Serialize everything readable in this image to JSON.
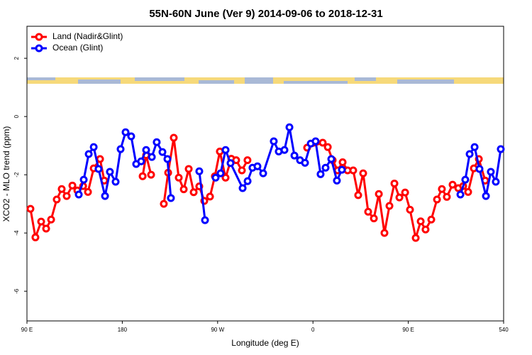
{
  "chart_data": {
    "type": "line",
    "title": "55N-60N June (Ver 9)   2014-09-06 to 2018-12-31",
    "x_label": "Longitude (deg E)",
    "y_label": "XCO2 - MLO trend (ppm)",
    "xlim": [
      90,
      540
    ],
    "xticks": [
      {
        "value": 90,
        "label": "90 E"
      },
      180,
      {
        "value": 270,
        "label": "90 W"
      },
      {
        "value": 360,
        "label": "0"
      },
      {
        "value": 450,
        "label": "90 E"
      },
      540
    ],
    "ylim": [
      -7.02,
      3.1
    ],
    "yticks": [
      2,
      0,
      -2,
      -4,
      -6
    ],
    "legend": "top-left",
    "series": [
      {
        "name": "Land (Nadir&Glint)",
        "color": "#ff0000",
        "x": [
          93.3,
          98,
          103.4,
          108.1,
          112.8,
          118.1,
          122.8,
          127.5,
          132.9,
          137.6,
          143,
          147.6,
          153,
          159,
          163,
          null,
          199.2,
          202.5,
          207.2,
          null,
          219.2,
          223.3,
          228.6,
          233.3,
          238,
          242.7,
          247.4,
          252.7,
          257.4,
          262.8,
          267.4,
          272.1,
          277.5,
          282.9,
          287.5,
          292.9,
          298.2,
          null,
          354.5,
          369.2,
          374,
          378.6,
          383.3,
          388,
          392.7,
          398,
          402.7,
          407.4,
          412.1,
          417.5,
          422.2,
          427.5,
          432.2,
          436.9,
          441.6,
          447,
          451.6,
          457,
          461.7,
          466.3,
          471.7,
          477.1,
          481.7,
          486.4,
          491.8,
          497.2,
          501.8,
          506.5,
          511.9,
          516.6,
          522.6
        ],
        "values": [
          -3.17,
          -4.15,
          -3.61,
          -3.85,
          -3.54,
          -2.85,
          -2.49,
          -2.73,
          -2.37,
          -2.54,
          -2.39,
          -2.59,
          -1.78,
          -1.46,
          -2.2,
          null,
          -2.05,
          -1.33,
          -2.0,
          null,
          -3.0,
          -1.93,
          -0.73,
          -2.1,
          -2.5,
          -1.8,
          -2.6,
          -2.4,
          -2.9,
          -2.75,
          -2.05,
          -1.2,
          -2.1,
          -1.45,
          -1.5,
          -1.85,
          -1.5,
          null,
          -1.07,
          -0.9,
          -1.05,
          -1.5,
          -1.85,
          -1.57,
          -1.85,
          -1.85,
          -2.7,
          -1.95,
          -3.27,
          -3.5,
          -2.66,
          -4.0,
          -3.07,
          -2.3,
          -2.78,
          -2.61,
          -3.2,
          -4.17,
          -3.6,
          -3.88,
          -3.54,
          -2.85,
          -2.49,
          -2.76,
          -2.34,
          -2.46,
          -2.39,
          -2.59,
          -1.78,
          -1.46,
          -2.2
        ]
      },
      {
        "name": "Ocean (Glint)",
        "color": "#0000ff",
        "x": [
          138.9,
          143.6,
          148.3,
          153,
          157.6,
          163.7,
          168.3,
          173.7,
          178.4,
          183.1,
          188.4,
          193.1,
          197.8,
          202.5,
          207.9,
          212.5,
          217.9,
          222.6,
          225.9,
          null,
          252.7,
          258.1,
          null,
          268.1,
          272.8,
          277.5,
          282.2,
          293.6,
          298.3,
          302.9,
          307.6,
          313,
          323,
          327.7,
          333.1,
          337.8,
          342.5,
          347.8,
          352.5,
          357.9,
          362.5,
          367.2,
          371.9,
          377.3,
          382.6,
          387.3,
          null,
          499.2,
          503.8,
          507.9,
          512.6,
          517.2,
          523.3,
          527.9,
          532.6,
          537.3
        ],
        "values": [
          -2.68,
          -2.17,
          -1.29,
          -1.05,
          -1.8,
          -2.73,
          -1.9,
          -2.24,
          -1.12,
          -0.54,
          -0.68,
          -1.63,
          -1.54,
          -1.15,
          -1.39,
          -0.88,
          -1.22,
          -1.46,
          -2.8,
          null,
          -1.88,
          -3.56,
          null,
          -2.1,
          -1.95,
          -1.15,
          -1.6,
          -2.46,
          -2.22,
          -1.76,
          -1.71,
          -1.95,
          -0.85,
          -1.2,
          -1.15,
          -0.37,
          -1.34,
          -1.5,
          -1.59,
          -0.93,
          -0.85,
          -1.98,
          -1.76,
          -1.46,
          -2.2,
          -1.83,
          null,
          -2.68,
          -2.17,
          -1.29,
          -1.05,
          -1.8,
          -2.73,
          -1.9,
          -2.24,
          -1.12
        ]
      }
    ]
  }
}
